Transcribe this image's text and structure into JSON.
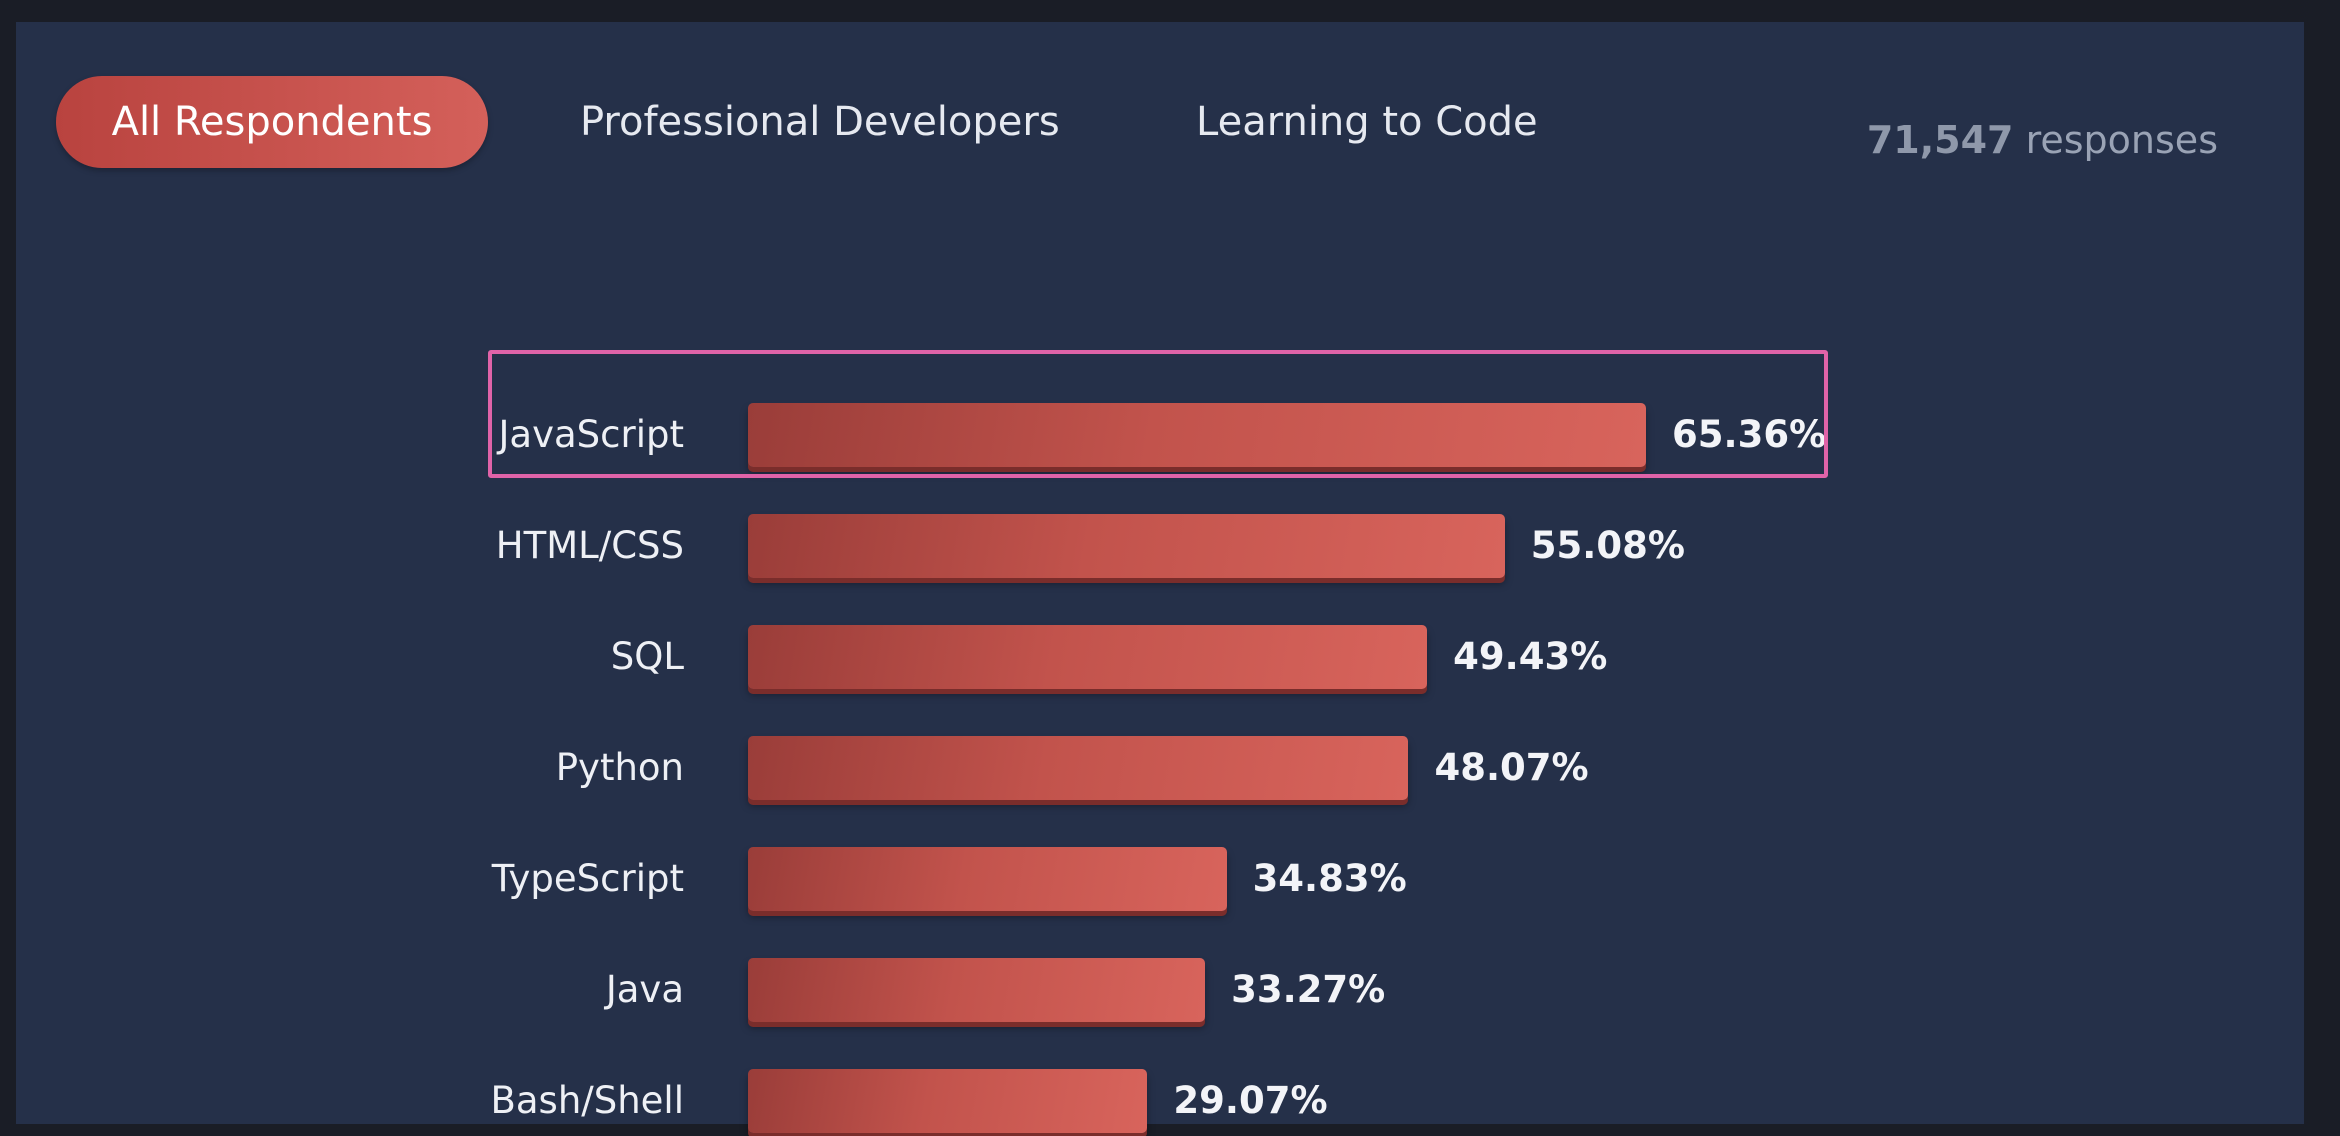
{
  "tabs": [
    {
      "label": "All Respondents",
      "active": true
    },
    {
      "label": "Professional Developers",
      "active": false
    },
    {
      "label": "Learning to Code",
      "active": false
    }
  ],
  "responses": {
    "count": "71,547",
    "label": "responses"
  },
  "colors": {
    "background": "#253049",
    "bar": "#c2534c",
    "active_tab": "#c64e48",
    "highlight": "#e063a8"
  },
  "highlighted_category": "JavaScript",
  "chart_data": {
    "type": "bar",
    "orientation": "horizontal",
    "categories": [
      "JavaScript",
      "HTML/CSS",
      "SQL",
      "Python",
      "TypeScript",
      "Java",
      "Bash/Shell"
    ],
    "values": [
      65.36,
      55.08,
      49.43,
      48.07,
      34.83,
      33.27,
      29.07
    ],
    "value_labels": [
      "65.36%",
      "55.08%",
      "49.43%",
      "48.07%",
      "34.83%",
      "33.27%",
      "29.07%"
    ],
    "unit": "%",
    "title": "",
    "xlabel": "",
    "ylabel": "",
    "xlim": [
      0,
      100
    ],
    "grid": false,
    "legend": "none"
  }
}
